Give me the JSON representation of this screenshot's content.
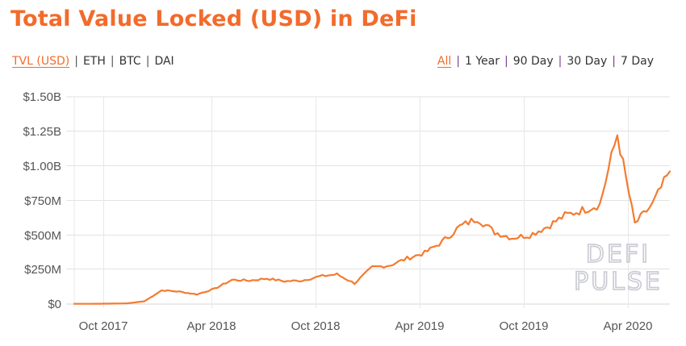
{
  "header": {
    "title": "Total Value Locked (USD) in DeFi"
  },
  "metric_tabs": [
    {
      "label": "TVL (USD)",
      "active": true
    },
    {
      "label": "ETH",
      "active": false
    },
    {
      "label": "BTC",
      "active": false
    },
    {
      "label": "DAI",
      "active": false
    }
  ],
  "range_tabs": [
    {
      "label": "All",
      "active": true
    },
    {
      "label": "1 Year",
      "active": false
    },
    {
      "label": "90 Day",
      "active": false
    },
    {
      "label": "30 Day",
      "active": false
    },
    {
      "label": "7 Day",
      "active": false
    }
  ],
  "watermark": {
    "line1": "DEFI",
    "line2": "PULSE"
  },
  "colors": {
    "accent": "#f26b2c",
    "line": "#f47b30",
    "grid": "#e2e2e2",
    "watermark": "#c9cad3"
  },
  "chart_data": {
    "type": "line",
    "title": "Total Value Locked (USD) in DeFi",
    "xlabel": "",
    "ylabel": "",
    "y_ticks": [
      "$0",
      "$250M",
      "$500M",
      "$750M",
      "$1.00B",
      "$1.25B",
      "$1.50B"
    ],
    "x_ticks": [
      "Oct 2017",
      "Apr 2018",
      "Oct 2018",
      "Apr 2019",
      "Oct 2019",
      "Apr 2020"
    ],
    "ylim": [
      0,
      1500000000
    ],
    "grid": true,
    "legend": "none",
    "series": [
      {
        "name": "TVL (USD)",
        "unit": "USD millions",
        "x": [
          "2017-08",
          "2017-09",
          "2017-10",
          "2017-11",
          "2017-12",
          "2018-01",
          "2018-02",
          "2018-03",
          "2018-04",
          "2018-05",
          "2018-06",
          "2018-07",
          "2018-08",
          "2018-09",
          "2018-10",
          "2018-11",
          "2018-12",
          "2019-01",
          "2019-02",
          "2019-03",
          "2019-04",
          "2019-05",
          "2019-06",
          "2019-07",
          "2019-08",
          "2019-09",
          "2019-10",
          "2019-11",
          "2019-12",
          "2020-01",
          "2020-02",
          "2020-03",
          "2020-04",
          "2020-05",
          "2020-06"
        ],
        "values": [
          2,
          2,
          3,
          5,
          20,
          100,
          90,
          70,
          110,
          175,
          170,
          185,
          165,
          170,
          200,
          215,
          150,
          265,
          280,
          330,
          370,
          450,
          560,
          620,
          520,
          480,
          500,
          560,
          640,
          680,
          720,
          1230,
          580,
          720,
          960
        ]
      }
    ]
  }
}
